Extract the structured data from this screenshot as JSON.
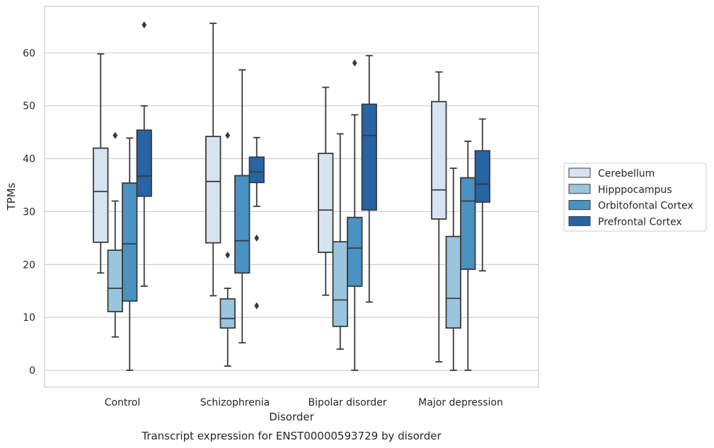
{
  "caption": "Transcript expression for ENST00000593729 by disorder",
  "chart_data": {
    "type": "box",
    "xlabel": "Disorder",
    "ylabel": "TPMs",
    "ylim": [
      -3.2,
      68.8
    ],
    "yticks": [
      0,
      10,
      20,
      30,
      40,
      50,
      60
    ],
    "grid": "horizontal",
    "legend_position": "right",
    "categories": [
      "Control",
      "Schizophrenia",
      "Bipolar disorder",
      "Major depression"
    ],
    "series": [
      {
        "name": "Cerebellum",
        "color": "#d6e4f1",
        "boxes": [
          {
            "whisker_low": 18.4,
            "q1": 24.2,
            "median": 33.8,
            "q3": 42.0,
            "whisker_high": 59.8,
            "outliers": []
          },
          {
            "whisker_low": 14.1,
            "q1": 24.1,
            "median": 35.7,
            "q3": 44.2,
            "whisker_high": 65.6,
            "outliers": []
          },
          {
            "whisker_low": 14.2,
            "q1": 22.3,
            "median": 30.3,
            "q3": 41.0,
            "whisker_high": 53.5,
            "outliers": []
          },
          {
            "whisker_low": 1.6,
            "q1": 28.6,
            "median": 34.1,
            "q3": 50.8,
            "whisker_high": 56.4,
            "outliers": []
          }
        ]
      },
      {
        "name": "Hipppocampus",
        "color": "#9ac5de",
        "boxes": [
          {
            "whisker_low": 6.3,
            "q1": 11.1,
            "median": 15.5,
            "q3": 22.7,
            "whisker_high": 32.0,
            "outliers": [
              44.4
            ]
          },
          {
            "whisker_low": 0.8,
            "q1": 8.0,
            "median": 9.8,
            "q3": 13.5,
            "whisker_high": 15.5,
            "outliers": [
              44.4,
              21.8
            ]
          },
          {
            "whisker_low": 4.0,
            "q1": 8.3,
            "median": 13.3,
            "q3": 24.3,
            "whisker_high": 44.7,
            "outliers": []
          },
          {
            "whisker_low": 0.0,
            "q1": 8.0,
            "median": 13.6,
            "q3": 25.3,
            "whisker_high": 38.2,
            "outliers": []
          }
        ]
      },
      {
        "name": "Orbitofontal Cortex",
        "color": "#4a92c2",
        "boxes": [
          {
            "whisker_low": 0.0,
            "q1": 13.1,
            "median": 23.9,
            "q3": 35.4,
            "whisker_high": 43.9,
            "outliers": []
          },
          {
            "whisker_low": 5.2,
            "q1": 18.4,
            "median": 24.5,
            "q3": 36.8,
            "whisker_high": 56.8,
            "outliers": []
          },
          {
            "whisker_low": 0.0,
            "q1": 15.9,
            "median": 23.1,
            "q3": 28.9,
            "whisker_high": 48.3,
            "outliers": [
              58.1
            ]
          },
          {
            "whisker_low": 0.0,
            "q1": 19.1,
            "median": 32.0,
            "q3": 36.4,
            "whisker_high": 43.3,
            "outliers": []
          }
        ]
      },
      {
        "name": "Prefrontal Cortex",
        "color": "#2664a4",
        "boxes": [
          {
            "whisker_low": 15.9,
            "q1": 32.9,
            "median": 36.7,
            "q3": 45.4,
            "whisker_high": 50.0,
            "outliers": [
              65.3
            ]
          },
          {
            "whisker_low": 31.0,
            "q1": 35.5,
            "median": 37.5,
            "q3": 40.3,
            "whisker_high": 44.0,
            "outliers": [
              25.0,
              12.2
            ]
          },
          {
            "whisker_low": 12.9,
            "q1": 30.3,
            "median": 44.4,
            "q3": 50.3,
            "whisker_high": 59.5,
            "outliers": []
          },
          {
            "whisker_low": 18.8,
            "q1": 31.8,
            "median": 35.2,
            "q3": 41.5,
            "whisker_high": 47.5,
            "outliers": []
          }
        ]
      }
    ]
  }
}
